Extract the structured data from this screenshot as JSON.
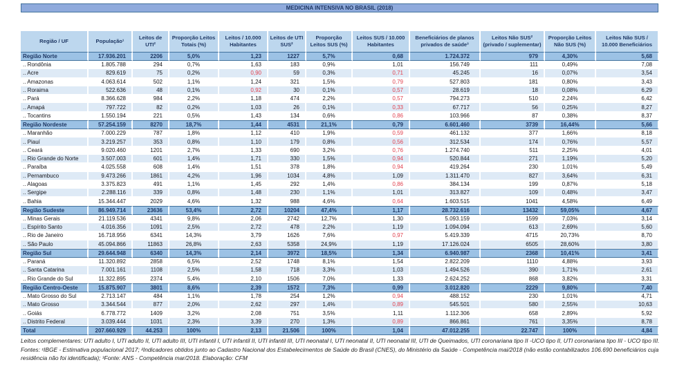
{
  "title": "MEDICINA INTENSIVA NO BRASIL (2018)",
  "colors": {
    "accent_blue": "#8FAADC",
    "header_blue": "#BDD7EE",
    "region_blue": "#9CC2E5",
    "band_blue": "#DEEAF6",
    "navy_text": "#1F3864",
    "line_blue": "#41719C",
    "alert_red": "#E0404E"
  },
  "table": {
    "columns": [
      "Região / UF",
      "População¹",
      "Leitos de UTI²",
      "Proporção Leitos Totais (%)",
      "Leitos / 10.000 Habitantes",
      "Leitos de UTI SUS²",
      "Proporção Leitos SUS (%)",
      "Leitos SUS / 10.000 Habitantes",
      "Beneficiários de planos privados de saúde³",
      "Leitos Não SUS² (privado / suplementar)",
      "Proporção Leitos Não SUS (%)",
      "Leitos Não SUS / 10.000 Beneficiários"
    ],
    "rows": [
      {
        "type": "region",
        "band": false,
        "red": [],
        "cells": [
          "Região Norte",
          "17.936.201",
          "2206",
          "5,0%",
          "1,23",
          "1227",
          "5,7%",
          "0,68",
          "1.724.372",
          "979",
          "4,30%",
          "5,68"
        ]
      },
      {
        "type": "state",
        "band": false,
        "red": [],
        "cells": [
          ".. Rondônia",
          "1.805.788",
          "294",
          "0,7%",
          "1,63",
          "183",
          "0,9%",
          "1,01",
          "156.749",
          "111",
          "0,49%",
          "7,08"
        ]
      },
      {
        "type": "state",
        "band": true,
        "red": [
          4,
          7
        ],
        "cells": [
          ".. Acre",
          "829.619",
          "75",
          "0,2%",
          "0,90",
          "59",
          "0,3%",
          "0,71",
          "45.245",
          "16",
          "0,07%",
          "3,54"
        ]
      },
      {
        "type": "state",
        "band": false,
        "red": [
          7
        ],
        "cells": [
          ".. Amazonas",
          "4.063.614",
          "502",
          "1,1%",
          "1,24",
          "321",
          "1,5%",
          "0,79",
          "527.803",
          "181",
          "0,80%",
          "3,43"
        ]
      },
      {
        "type": "state",
        "band": true,
        "red": [
          4,
          7
        ],
        "cells": [
          ".. Roraima",
          "522.636",
          "48",
          "0,1%",
          "0,92",
          "30",
          "0,1%",
          "0,57",
          "28.619",
          "18",
          "0,08%",
          "6,29"
        ]
      },
      {
        "type": "state",
        "band": false,
        "red": [
          7
        ],
        "cells": [
          ".. Pará",
          "8.366.628",
          "984",
          "2,2%",
          "1,18",
          "474",
          "2,2%",
          "0,57",
          "794.273",
          "510",
          "2,24%",
          "6,42"
        ]
      },
      {
        "type": "state",
        "band": true,
        "red": [
          7
        ],
        "cells": [
          ".. Amapá",
          "797.722",
          "82",
          "0,2%",
          "1,03",
          "26",
          "0,1%",
          "0,33",
          "67.717",
          "56",
          "0,25%",
          "8,27"
        ]
      },
      {
        "type": "state",
        "band": false,
        "red": [
          7
        ],
        "cells": [
          ".. Tocantins",
          "1.550.194",
          "221",
          "0,5%",
          "1,43",
          "134",
          "0,6%",
          "0,86",
          "103.966",
          "87",
          "0,38%",
          "8,37"
        ]
      },
      {
        "type": "region",
        "band": false,
        "red": [],
        "cells": [
          "Região Nordeste",
          "57.254.159",
          "8270",
          "18,7%",
          "1,44",
          "4531",
          "21,1%",
          "0,79",
          "6.601.460",
          "3739",
          "16,44%",
          "5,66"
        ]
      },
      {
        "type": "state",
        "band": false,
        "red": [
          7
        ],
        "cells": [
          ".. Maranhão",
          "7.000.229",
          "787",
          "1,8%",
          "1,12",
          "410",
          "1,9%",
          "0,59",
          "461.132",
          "377",
          "1,66%",
          "8,18"
        ]
      },
      {
        "type": "state",
        "band": true,
        "red": [
          7
        ],
        "cells": [
          ".. Piauí",
          "3.219.257",
          "353",
          "0,8%",
          "1,10",
          "179",
          "0,8%",
          "0,56",
          "312.534",
          "174",
          "0,76%",
          "5,57"
        ]
      },
      {
        "type": "state",
        "band": false,
        "red": [
          7
        ],
        "cells": [
          ".. Ceará",
          "9.020.460",
          "1201",
          "2,7%",
          "1,33",
          "690",
          "3,2%",
          "0,76",
          "1.274.740",
          "511",
          "2,25%",
          "4,01"
        ]
      },
      {
        "type": "state",
        "band": true,
        "red": [
          7
        ],
        "cells": [
          ".. Rio Grande do Norte",
          "3.507.003",
          "601",
          "1,4%",
          "1,71",
          "330",
          "1,5%",
          "0,94",
          "520.844",
          "271",
          "1,19%",
          "5,20"
        ]
      },
      {
        "type": "state",
        "band": false,
        "red": [
          7
        ],
        "cells": [
          ".. Paraíba",
          "4.025.558",
          "608",
          "1,4%",
          "1,51",
          "378",
          "1,8%",
          "0,94",
          "419.264",
          "230",
          "1,01%",
          "5,49"
        ]
      },
      {
        "type": "state",
        "band": true,
        "red": [],
        "cells": [
          ".. Pernambuco",
          "9.473.266",
          "1861",
          "4,2%",
          "1,96",
          "1034",
          "4,8%",
          "1,09",
          "1.311.470",
          "827",
          "3,64%",
          "6,31"
        ]
      },
      {
        "type": "state",
        "band": false,
        "red": [
          7
        ],
        "cells": [
          ".. Alagoas",
          "3.375.823",
          "491",
          "1,1%",
          "1,45",
          "292",
          "1,4%",
          "0,86",
          "384.134",
          "199",
          "0,87%",
          "5,18"
        ]
      },
      {
        "type": "state",
        "band": true,
        "red": [],
        "cells": [
          ".. Sergipe",
          "2.288.116",
          "339",
          "0,8%",
          "1,48",
          "230",
          "1,1%",
          "1,01",
          "313.827",
          "109",
          "0,48%",
          "3,47"
        ]
      },
      {
        "type": "state",
        "band": false,
        "red": [
          7
        ],
        "cells": [
          ".. Bahia",
          "15.344.447",
          "2029",
          "4,6%",
          "1,32",
          "988",
          "4,6%",
          "0,64",
          "1.603.515",
          "1041",
          "4,58%",
          "6,49"
        ]
      },
      {
        "type": "region",
        "band": false,
        "red": [],
        "cells": [
          "Região Sudeste",
          "86.949.714",
          "23636",
          "53,4%",
          "2,72",
          "10204",
          "47,4%",
          "1,17",
          "28.732.616",
          "13432",
          "59,05%",
          "4,67"
        ]
      },
      {
        "type": "state",
        "band": false,
        "red": [],
        "cells": [
          ".. Minas Gerais",
          "21.119.536",
          "4341",
          "9,8%",
          "2,06",
          "2742",
          "12,7%",
          "1,30",
          "5.093.159",
          "1599",
          "7,03%",
          "3,14"
        ]
      },
      {
        "type": "state",
        "band": true,
        "red": [],
        "cells": [
          ".. Espírito Santo",
          "4.016.356",
          "1091",
          "2,5%",
          "2,72",
          "478",
          "2,2%",
          "1,19",
          "1.094.094",
          "613",
          "2,69%",
          "5,60"
        ]
      },
      {
        "type": "state",
        "band": false,
        "red": [
          7
        ],
        "cells": [
          ".. Rio de Janeiro",
          "16.718.956",
          "6341",
          "14,3%",
          "3,79",
          "1626",
          "7,6%",
          "0,97",
          "5.419.339",
          "4715",
          "20,73%",
          "8,70"
        ]
      },
      {
        "type": "state",
        "band": true,
        "red": [],
        "cells": [
          ".. São Paulo",
          "45.094.866",
          "11863",
          "26,8%",
          "2,63",
          "5358",
          "24,9%",
          "1,19",
          "17.126.024",
          "6505",
          "28,60%",
          "3,80"
        ]
      },
      {
        "type": "region",
        "band": false,
        "red": [],
        "cells": [
          "Região Sul",
          "29.644.948",
          "6340",
          "14,3%",
          "2,14",
          "3972",
          "18,5%",
          "1,34",
          "6.940.987",
          "2368",
          "10,41%",
          "3,41"
        ]
      },
      {
        "type": "state",
        "band": false,
        "red": [],
        "cells": [
          ".. Paraná",
          "11.320.892",
          "2858",
          "6,5%",
          "2,52",
          "1748",
          "8,1%",
          "1,54",
          "2.822.209",
          "1110",
          "4,88%",
          "3,93"
        ]
      },
      {
        "type": "state",
        "band": true,
        "red": [],
        "cells": [
          ".. Santa Catarina",
          "7.001.161",
          "1108",
          "2,5%",
          "1,58",
          "718",
          "3,3%",
          "1,03",
          "1.494.526",
          "390",
          "1,71%",
          "2,61"
        ]
      },
      {
        "type": "state",
        "band": false,
        "red": [],
        "cells": [
          ".. Rio Grande do Sul",
          "11.322.895",
          "2374",
          "5,4%",
          "2,10",
          "1506",
          "7,0%",
          "1,33",
          "2.624.252",
          "868",
          "3,82%",
          "3,31"
        ]
      },
      {
        "type": "region",
        "band": false,
        "red": [],
        "cells": [
          "Região Centro-Oeste",
          "15.875.907",
          "3801",
          "8,6%",
          "2,39",
          "1572",
          "7,3%",
          "0,99",
          "3.012.820",
          "2229",
          "9,80%",
          "7,40"
        ]
      },
      {
        "type": "state",
        "band": false,
        "red": [
          7
        ],
        "cells": [
          ".. Mato Grosso do Sul",
          "2.713.147",
          "484",
          "1,1%",
          "1,78",
          "254",
          "1,2%",
          "0,94",
          "488.152",
          "230",
          "1,01%",
          "4,71"
        ]
      },
      {
        "type": "state",
        "band": true,
        "red": [
          7
        ],
        "cells": [
          ".. Mato Grosso",
          "3.344.544",
          "877",
          "2,0%",
          "2,62",
          "297",
          "1,4%",
          "0,89",
          "545.501",
          "580",
          "2,55%",
          "10,63"
        ]
      },
      {
        "type": "state",
        "band": false,
        "red": [],
        "cells": [
          ".. Goiás",
          "6.778.772",
          "1409",
          "3,2%",
          "2,08",
          "751",
          "3,5%",
          "1,11",
          "1.112.306",
          "658",
          "2,89%",
          "5,92"
        ]
      },
      {
        "type": "state",
        "band": true,
        "red": [
          7
        ],
        "cells": [
          ".. Distrito Federal",
          "3.039.444",
          "1031",
          "2,3%",
          "3,39",
          "270",
          "1,3%",
          "0,89",
          "866.861",
          "761",
          "3,35%",
          "8,78"
        ]
      },
      {
        "type": "total",
        "band": false,
        "red": [],
        "cells": [
          "Total",
          "207.660.929",
          "44.253",
          "100%",
          "2,13",
          "21.506",
          "100%",
          "1,04",
          "47.012.255",
          "22.747",
          "100%",
          "4,84"
        ]
      }
    ]
  },
  "footnote": "Leitos complementares: UTI adulto I, UTI adulto II, UTI adulto III, UTI infantil I, UTI infantil II, UTI infantil III, UTI neonatal I, UTI neonatal II, UTI neonatal III, UTI de Queimados, UTI coronariana tipo II -UCO tipo II, UTI coronariana tipo III - UCO tipo III. Fontes: ¹IBGE - Estimativa populacional 2017; ²Indicadores obtidos junto ao Cadastro Nacional dos Estabelecimentos de Saúde do Brasil (CNES), do Ministério da Saúde - Competência mai/2018 (não estão contabilizados 106.690 beneficiários cuja residência não foi identificada); ³Fonte: ANS - Competência mar/2018. Elaboração: CFM"
}
